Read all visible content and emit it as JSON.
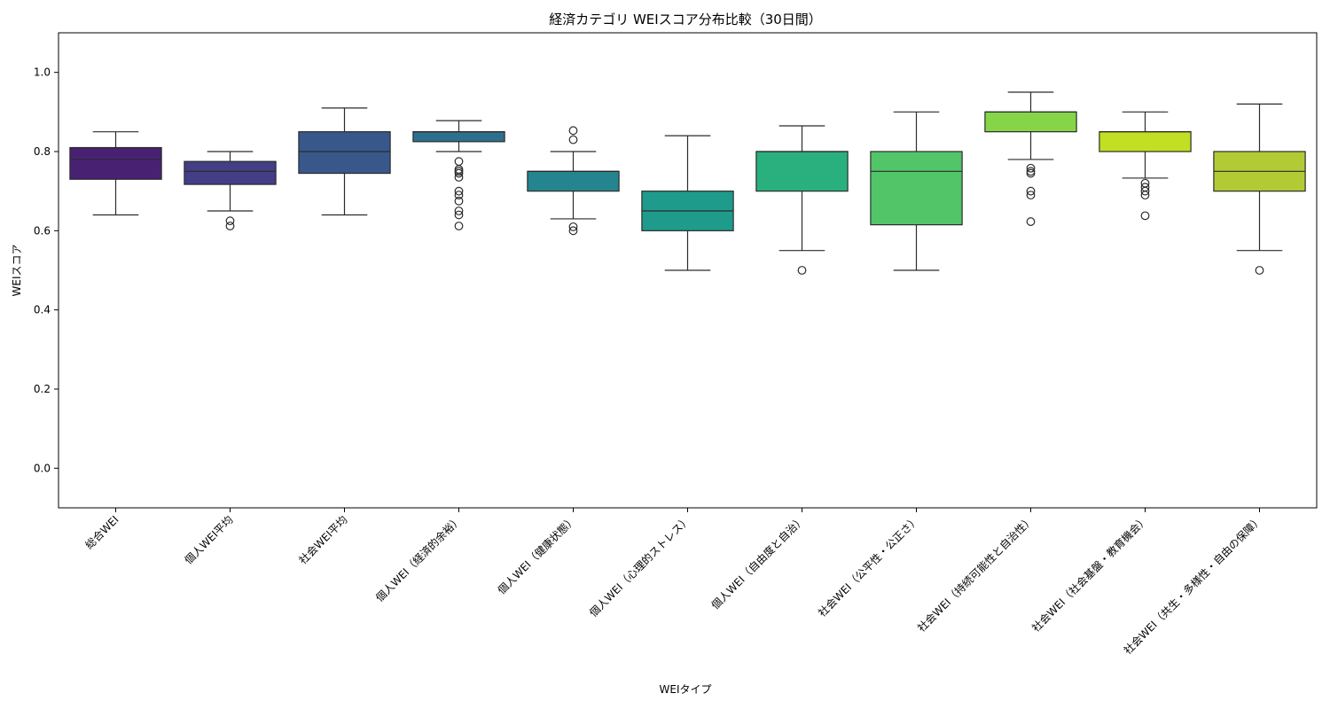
{
  "chart_data": {
    "type": "box",
    "title": "経済カテゴリ WEIスコア分布比較（30日間）",
    "xlabel": "WEIタイプ",
    "ylabel": "WEIスコア",
    "ylim": [
      -0.1,
      1.1
    ],
    "yticks": [
      "0.0",
      "0.2",
      "0.4",
      "0.6",
      "0.8",
      "1.0"
    ],
    "grid": false,
    "categories": [
      {
        "label": "総合WEI",
        "color": "#482173",
        "whisker_low": 0.64,
        "q1": 0.73,
        "median": 0.78,
        "q3": 0.81,
        "whisker_high": 0.85,
        "outliers": []
      },
      {
        "label": "個人WEI平均",
        "color": "#433e85",
        "whisker_low": 0.65,
        "q1": 0.717,
        "median": 0.75,
        "q3": 0.775,
        "whisker_high": 0.8,
        "outliers": [
          0.612,
          0.625
        ]
      },
      {
        "label": "社会WEI平均",
        "color": "#38588c",
        "whisker_low": 0.64,
        "q1": 0.745,
        "median": 0.8,
        "q3": 0.85,
        "whisker_high": 0.91,
        "outliers": []
      },
      {
        "label": "個人WEI（経済的余裕）",
        "color": "#2d708e",
        "whisker_low": 0.8,
        "q1": 0.825,
        "median": 0.85,
        "q3": 0.85,
        "whisker_high": 0.878,
        "outliers": [
          0.612,
          0.64,
          0.65,
          0.675,
          0.69,
          0.7,
          0.735,
          0.745,
          0.75,
          0.755,
          0.775
        ]
      },
      {
        "label": "個人WEI（健康状態）",
        "color": "#25858e",
        "whisker_low": 0.63,
        "q1": 0.7,
        "median": 0.75,
        "q3": 0.75,
        "whisker_high": 0.8,
        "outliers": [
          0.6,
          0.61,
          0.83,
          0.853
        ]
      },
      {
        "label": "個人WEI（心理的ストレス）",
        "color": "#1e9b8a",
        "whisker_low": 0.5,
        "q1": 0.6,
        "median": 0.65,
        "q3": 0.7,
        "whisker_high": 0.84,
        "outliers": []
      },
      {
        "label": "個人WEI（自由度と自治）",
        "color": "#2ab07f",
        "whisker_low": 0.55,
        "q1": 0.7,
        "median": 0.8,
        "q3": 0.8,
        "whisker_high": 0.865,
        "outliers": [
          0.5
        ]
      },
      {
        "label": "社会WEI（公平性・公正さ）",
        "color": "#52c569",
        "whisker_low": 0.5,
        "q1": 0.615,
        "median": 0.75,
        "q3": 0.8,
        "whisker_high": 0.9,
        "outliers": []
      },
      {
        "label": "社会WEI（持続可能性と自治性）",
        "color": "#86d549",
        "whisker_low": 0.78,
        "q1": 0.85,
        "median": 0.9,
        "q3": 0.9,
        "whisker_high": 0.95,
        "outliers": [
          0.623,
          0.69,
          0.7,
          0.745,
          0.75,
          0.758
        ]
      },
      {
        "label": "社会WEI（社会基盤・教育機会）",
        "color": "#c2df23",
        "whisker_low": 0.733,
        "q1": 0.8,
        "median": 0.85,
        "q3": 0.85,
        "whisker_high": 0.9,
        "outliers": [
          0.638,
          0.69,
          0.7,
          0.71,
          0.72
        ]
      },
      {
        "label": "社会WEI（共生・多様性・自由の保障）",
        "color": "#b2cb35",
        "whisker_low": 0.55,
        "q1": 0.7,
        "median": 0.75,
        "q3": 0.8,
        "whisker_high": 0.92,
        "outliers": [
          0.5
        ]
      }
    ]
  }
}
